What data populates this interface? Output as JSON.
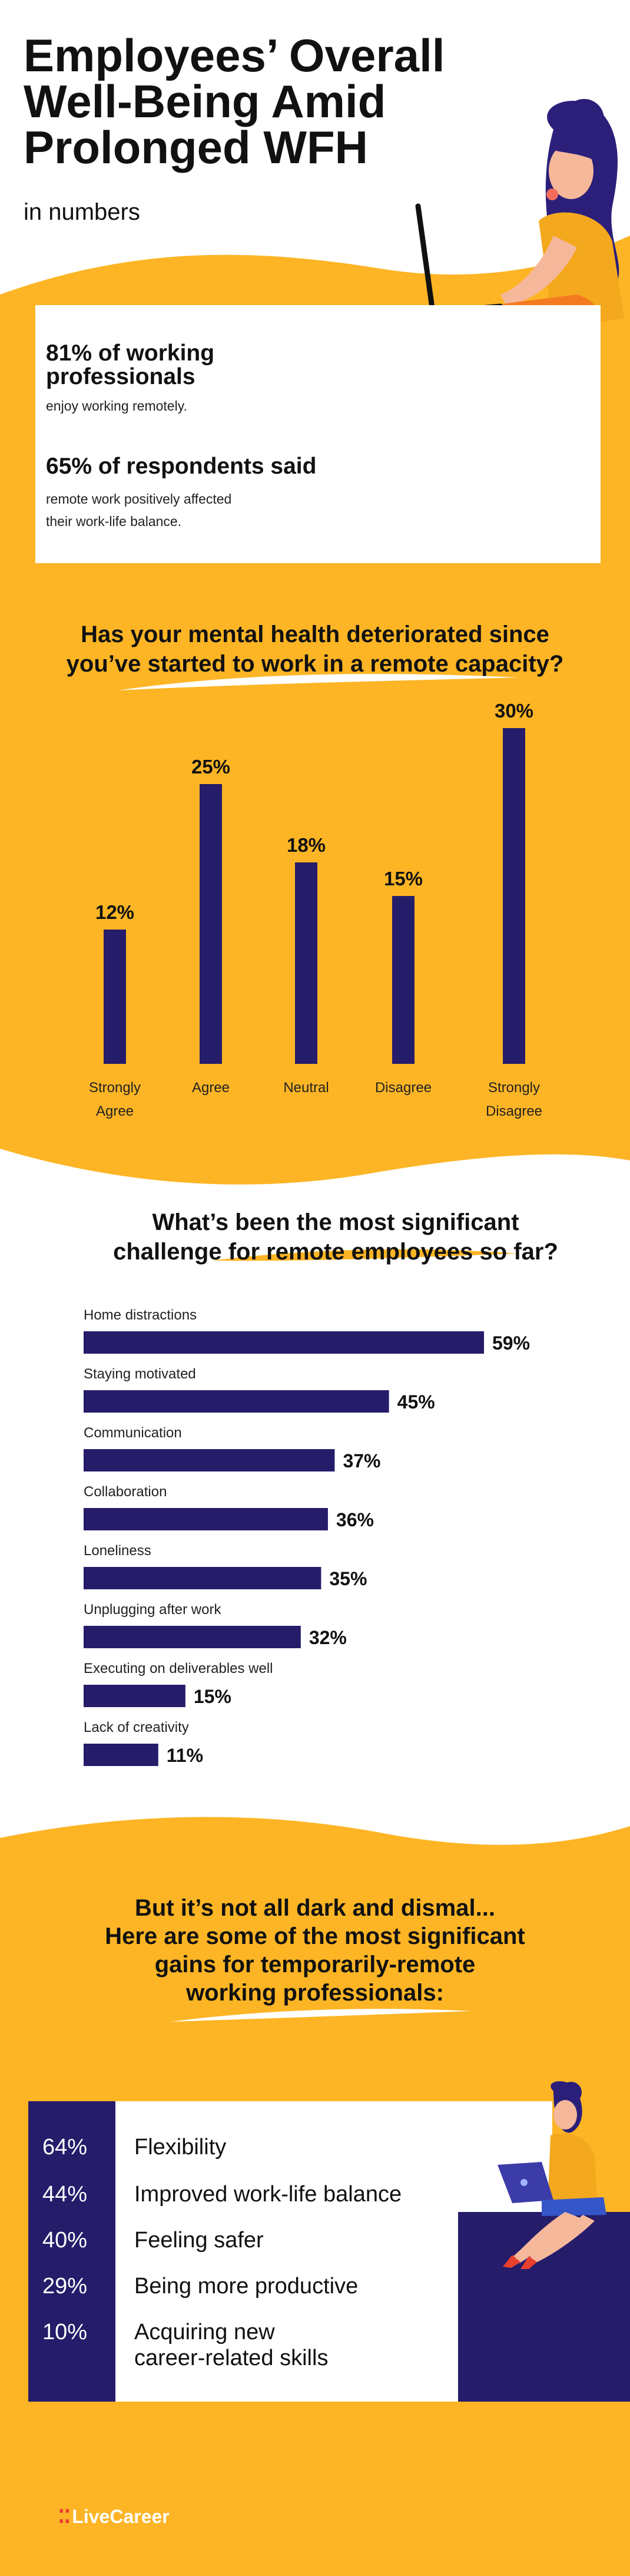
{
  "header": {
    "title_lines": [
      "Employees’ Overall",
      "Well-Being Amid",
      "Prolonged WFH"
    ],
    "subtitle": "in numbers"
  },
  "stats": [
    {
      "headline_lines": [
        "81% of working",
        "professionals"
      ],
      "detail_lines": [
        "enjoy working remotely."
      ]
    },
    {
      "headline_lines": [
        "65% of respondents said"
      ],
      "detail_lines": [
        "remote work positively affected",
        "their work-life balance."
      ]
    }
  ],
  "colors": {
    "yellow": "#FDB525",
    "navy": "#251C6A",
    "orange": "#F47A20",
    "logo_red": "#E8402E"
  },
  "chart_data": [
    {
      "type": "bar",
      "title_lines": [
        "Has your mental health deteriorated since",
        "you’ve started to work in a remote capacity?"
      ],
      "categories": [
        "Strongly Agree",
        "Agree",
        "Neutral",
        "Disagree",
        "Strongly Disagree"
      ],
      "category_label_lines": [
        [
          "Strongly",
          "Agree"
        ],
        [
          "Agree"
        ],
        [
          "Neutral"
        ],
        [
          "Disagree"
        ],
        [
          "Strongly",
          "Disagree"
        ]
      ],
      "values": [
        12,
        25,
        18,
        15,
        30
      ],
      "value_labels": [
        "12%",
        "25%",
        "18%",
        "15%",
        "30%"
      ],
      "unit": "%",
      "ylim": [
        0,
        30
      ],
      "grid": false,
      "bar_color": "#251C6A"
    },
    {
      "type": "bar",
      "orientation": "horizontal",
      "title_lines": [
        "What’s been the most significant",
        "challenge for remote employees so far?"
      ],
      "categories": [
        "Home distractions",
        "Staying motivated",
        "Communication",
        "Collaboration",
        "Loneliness",
        "Unplugging after work",
        "Executing on deliverables well",
        "Lack of creativity"
      ],
      "values": [
        59,
        45,
        37,
        36,
        35,
        32,
        15,
        11
      ],
      "value_labels": [
        "59%",
        "45%",
        "37%",
        "36%",
        "35%",
        "32%",
        "15%",
        "11%"
      ],
      "unit": "%",
      "xlim": [
        0,
        59
      ],
      "grid": false,
      "bar_color": "#251C6A"
    }
  ],
  "gains": {
    "title_lines": [
      "But it’s not all dark and dismal...",
      "Here are some of the most significant",
      "gains for temporarily-remote",
      "working professionals:"
    ],
    "items": [
      {
        "pct": "64%",
        "label_lines": [
          "Flexibility"
        ]
      },
      {
        "pct": "44%",
        "label_lines": [
          "Improved work-life balance"
        ]
      },
      {
        "pct": "40%",
        "label_lines": [
          "Feeling safer"
        ]
      },
      {
        "pct": "29%",
        "label_lines": [
          "Being more productive"
        ]
      },
      {
        "pct": "10%",
        "label_lines": [
          "Acquiring new",
          "career-related skills"
        ]
      }
    ]
  },
  "footer": {
    "logo_text": "LiveCareer",
    "logo_icon": "livecareer-dots-icon"
  }
}
